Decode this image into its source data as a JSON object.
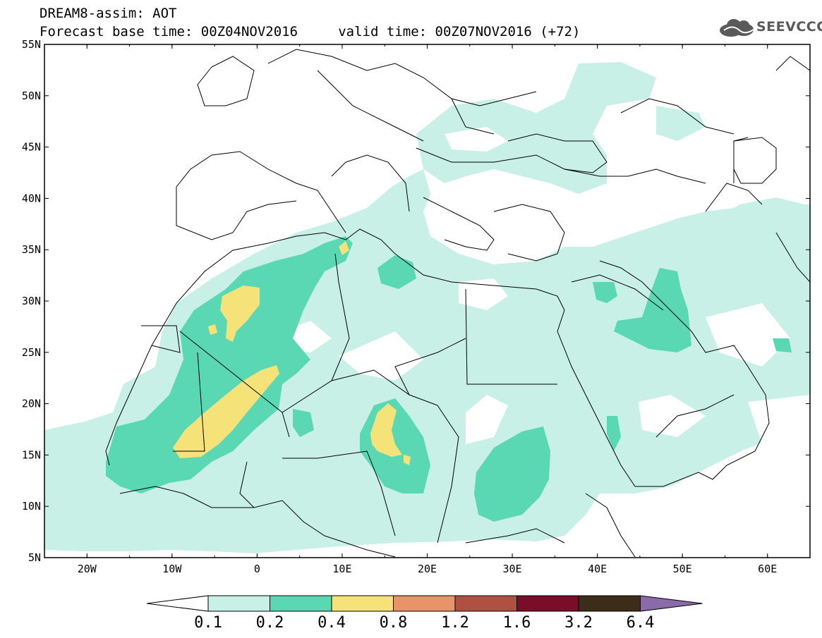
{
  "header": {
    "title_line1": "DREAM8-assim: AOT",
    "title_line2": "Forecast base time: 00Z04NOV2016     valid time: 00Z07NOV2016 (+72)"
  },
  "logo": {
    "text": "SEEVCCC",
    "icon": "cloud-icon",
    "color": "#5a5a5a"
  },
  "map": {
    "projection": "cylindrical equidistant",
    "lon_range": [
      -25,
      65
    ],
    "lat_range": [
      5,
      55
    ],
    "lat_labels": [
      "55N",
      "50N",
      "45N",
      "40N",
      "35N",
      "30N",
      "25N",
      "20N",
      "15N",
      "10N",
      "5N"
    ],
    "lon_labels": [
      "20W",
      "10W",
      "0",
      "10E",
      "20E",
      "30E",
      "40E",
      "50E",
      "60E"
    ],
    "variable": "Aerosol Optical Thickness"
  },
  "colorbar": {
    "levels": [
      "0.1",
      "0.2",
      "0.4",
      "0.8",
      "1.2",
      "1.6",
      "3.2",
      "6.4"
    ],
    "colors": [
      "#ffffff",
      "#c8f0e6",
      "#5ad8b4",
      "#f5e37a",
      "#e8936a",
      "#b05042",
      "#7a0e2a",
      "#3c2c1a",
      "#8a6aa8"
    ]
  }
}
